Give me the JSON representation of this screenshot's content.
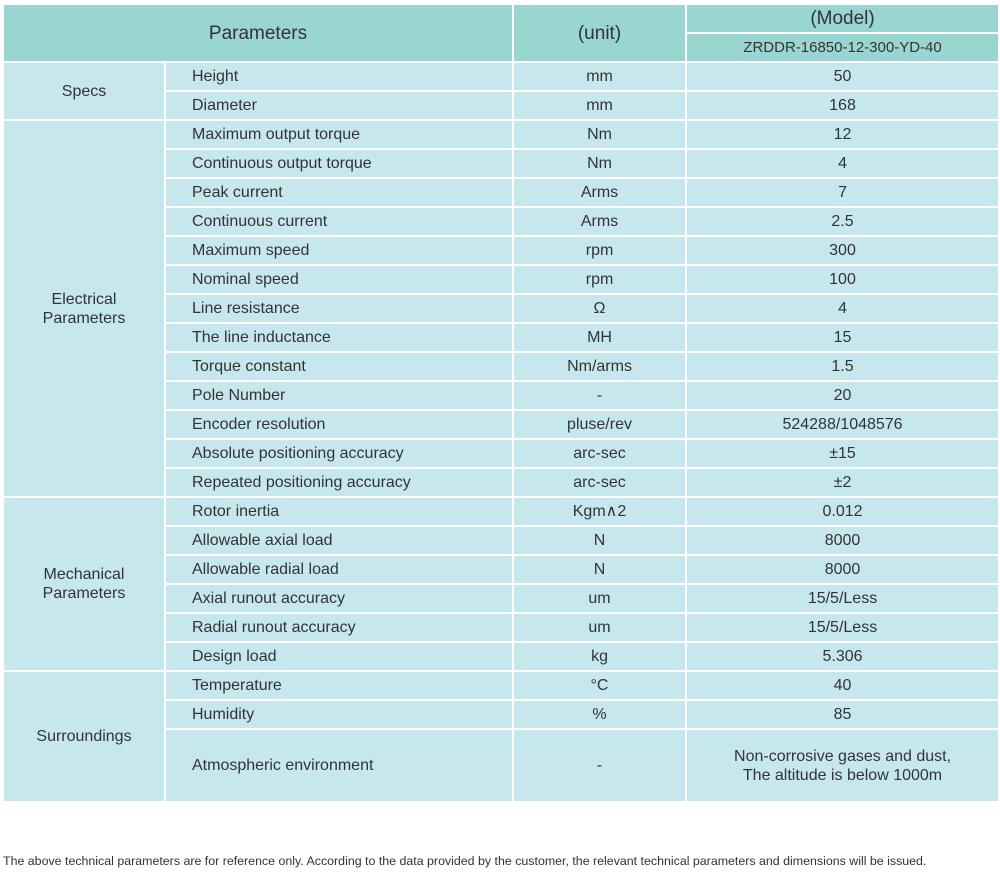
{
  "header": {
    "parameters": "Parameters",
    "unit": "(unit)",
    "model_label": "(Model)",
    "model_name": "ZRDDR-16850-12-300-YD-40"
  },
  "groups": [
    {
      "name": "Specs",
      "rows": [
        {
          "param": "Height",
          "unit": "mm",
          "value": "50"
        },
        {
          "param": "Diameter",
          "unit": "mm",
          "value": "168"
        }
      ]
    },
    {
      "name": "Electrical\nParameters",
      "rows": [
        {
          "param": "Maximum output torque",
          "unit": "Nm",
          "value": "12"
        },
        {
          "param": "Continuous output torque",
          "unit": "Nm",
          "value": "4"
        },
        {
          "param": "Peak current",
          "unit": "Arms",
          "value": "7"
        },
        {
          "param": "Continuous current",
          "unit": "Arms",
          "value": "2.5"
        },
        {
          "param": "Maximum speed",
          "unit": "rpm",
          "value": "300"
        },
        {
          "param": "Nominal speed",
          "unit": "rpm",
          "value": "100"
        },
        {
          "param": "Line resistance",
          "unit": "Ω",
          "value": "4"
        },
        {
          "param": "The line inductance",
          "unit": "MH",
          "value": "15"
        },
        {
          "param": "Torque constant",
          "unit": "Nm/arms",
          "value": "1.5"
        },
        {
          "param": "Pole Number",
          "unit": "-",
          "value": "20"
        },
        {
          "param": "Encoder resolution",
          "unit": "pluse/rev",
          "value": "524288/1048576"
        },
        {
          "param": "Absolute positioning accuracy",
          "unit": "arc-sec",
          "value": "±15"
        },
        {
          "param": "Repeated positioning accuracy",
          "unit": "arc-sec",
          "value": "±2"
        }
      ]
    },
    {
      "name": "Mechanical\nParameters",
      "rows": [
        {
          "param": "Rotor inertia",
          "unit": "Kgm∧2",
          "value": "0.012"
        },
        {
          "param": "Allowable axial load",
          "unit": "N",
          "value": "8000"
        },
        {
          "param": "Allowable radial load",
          "unit": "N",
          "value": "8000"
        },
        {
          "param": "Axial runout accuracy",
          "unit": "um",
          "value": "15/5/Less"
        },
        {
          "param": "Radial runout accuracy",
          "unit": "um",
          "value": "15/5/Less"
        },
        {
          "param": "Design load",
          "unit": "kg",
          "value": "5.306"
        }
      ]
    },
    {
      "name": "Surroundings",
      "rows": [
        {
          "param": "Temperature",
          "unit": "°C",
          "value": "40"
        },
        {
          "param": "Humidity",
          "unit": "%",
          "value": "85"
        },
        {
          "param": "Atmospheric environment",
          "unit": "-",
          "value": "Non-corrosive gases and dust,\nThe altitude is below 1000m",
          "tall": true
        }
      ]
    }
  ],
  "footer": "The above technical parameters are for reference only. According to the data provided by the customer, the relevant technical parameters and dimensions will be issued.",
  "colors": {
    "header_bg": "#9ad6d1",
    "body_bg": "#c7e7ee",
    "border": "#ffffff"
  }
}
